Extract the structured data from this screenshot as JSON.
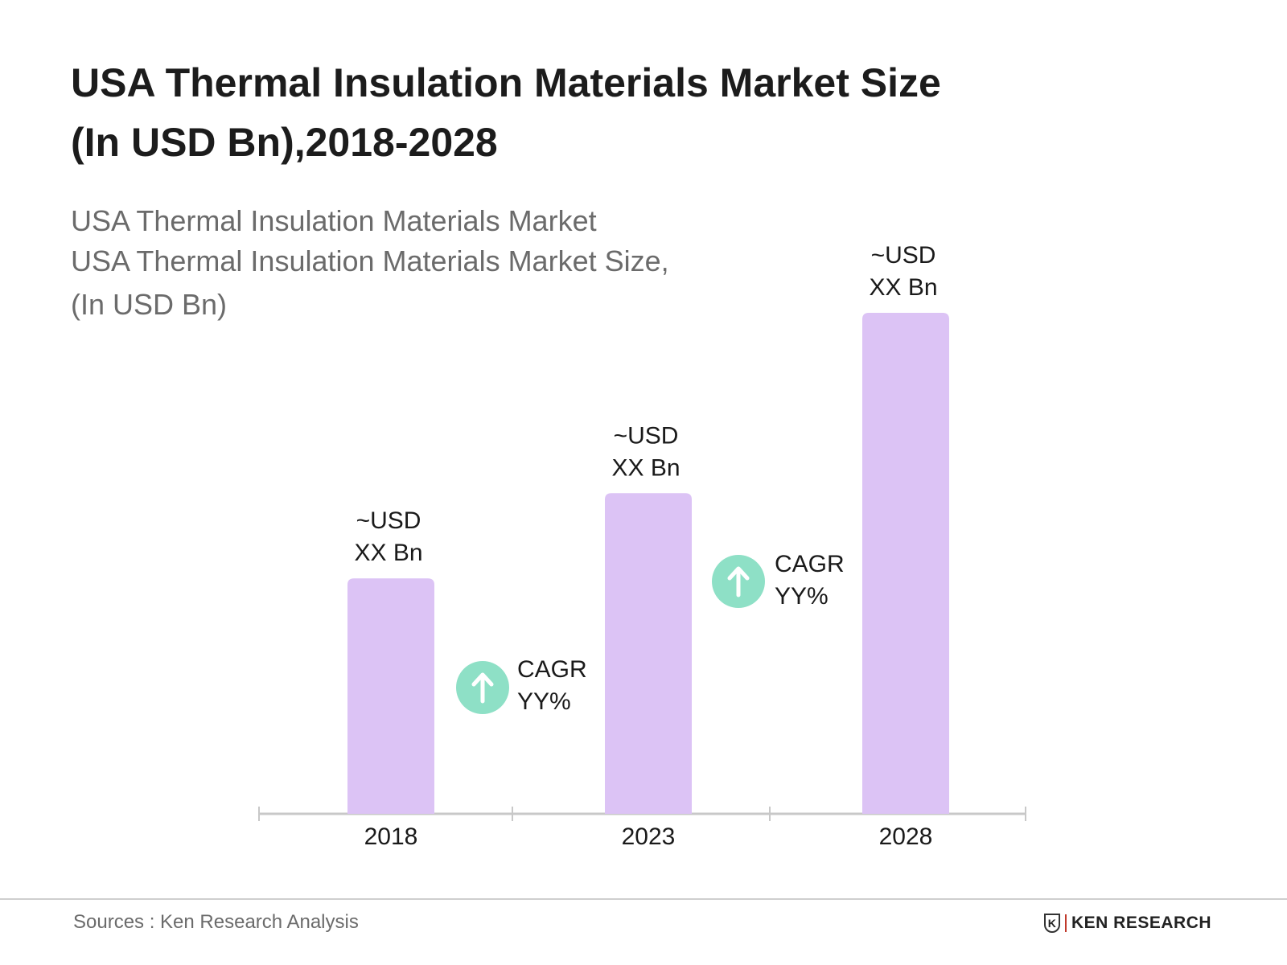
{
  "title_lines": [
    "USA Thermal Insulation Materials Market Size",
    "(In USD Bn),2018-2028"
  ],
  "subtitle_lines": [
    "USA Thermal Insulation Materials Market",
    "USA Thermal Insulation Materials Market Size,",
    "(In USD Bn)"
  ],
  "chart_data": {
    "type": "bar",
    "categories": [
      "2018",
      "2023",
      "2028"
    ],
    "values_relative_to_max": [
      0.47,
      0.64,
      1.0
    ],
    "data_labels": [
      [
        "~USD",
        "XX Bn"
      ],
      [
        "~USD",
        "XX Bn"
      ],
      [
        "~USD",
        "XX Bn"
      ]
    ],
    "annotations": [
      {
        "between": [
          "2018",
          "2023"
        ],
        "lines": [
          "CAGR",
          "YY%"
        ],
        "icon": "arrow-up-circle-icon"
      },
      {
        "between": [
          "2023",
          "2028"
        ],
        "lines": [
          "CAGR",
          "YY%"
        ],
        "icon": "arrow-up-circle-icon"
      }
    ],
    "colors": {
      "bar": "#dcc3f5",
      "cagr_circle": "#8ee0c6",
      "axis": "#c8c8c8"
    },
    "grid": false
  },
  "footer": {
    "source": "Sources : Ken Research Analysis",
    "logo_text": "KEN RESEARCH"
  }
}
